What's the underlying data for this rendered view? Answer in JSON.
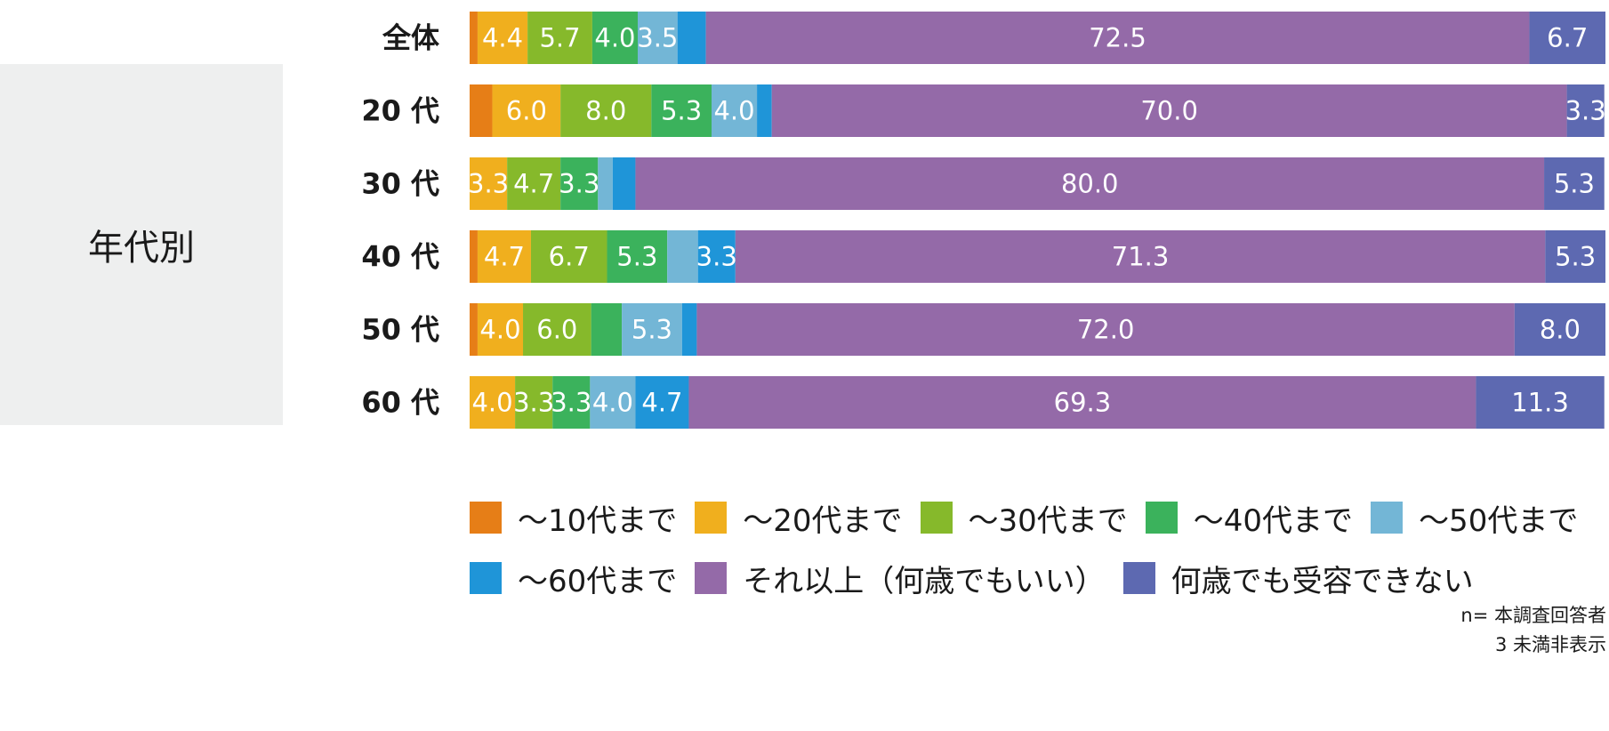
{
  "group_label": "年代別",
  "notes": [
    "n= 本調査回答者",
    "3 未満非表示"
  ],
  "chart_data": {
    "type": "bar",
    "orientation": "horizontal",
    "stacked": true,
    "normalized": true,
    "xlim": [
      0,
      100
    ],
    "categories": [
      "全体",
      "20 代",
      "30 代",
      "40 代",
      "50 代",
      "60 代"
    ],
    "series": [
      {
        "name": "～10代まで",
        "color": "#e67e17",
        "values": [
          0.7,
          2.0,
          0,
          0.7,
          0.7,
          0
        ],
        "labels": [
          "",
          "",
          "",
          "",
          "",
          ""
        ]
      },
      {
        "name": "～20代まで",
        "color": "#f0af1e",
        "values": [
          4.4,
          6.0,
          3.3,
          4.7,
          4.0,
          4.0
        ],
        "labels": [
          "4.4",
          "6.0",
          "3.3",
          "4.7",
          "4.0",
          "4.0"
        ]
      },
      {
        "name": "～30代まで",
        "color": "#86b92b",
        "values": [
          5.7,
          8.0,
          4.7,
          6.7,
          6.0,
          3.3
        ],
        "labels": [
          "5.7",
          "8.0",
          "4.7",
          "6.7",
          "6.0",
          "3.3"
        ]
      },
      {
        "name": "～40代まで",
        "color": "#3bb25c",
        "values": [
          4.0,
          5.3,
          3.3,
          5.3,
          2.7,
          3.3
        ],
        "labels": [
          "4.0",
          "5.3",
          "3.3",
          "5.3",
          "",
          "3.3"
        ]
      },
      {
        "name": "～50代まで",
        "color": "#73b6d6",
        "values": [
          3.5,
          4.0,
          1.3,
          2.7,
          5.3,
          4.0
        ],
        "labels": [
          "3.5",
          "4.0",
          "",
          "",
          "5.3",
          "4.0"
        ]
      },
      {
        "name": "～60代まで",
        "color": "#1f95d8",
        "values": [
          2.5,
          1.3,
          2.0,
          3.3,
          1.3,
          4.7
        ],
        "labels": [
          "",
          "",
          "",
          "3.3",
          "",
          "4.7"
        ]
      },
      {
        "name": "それ以上（何歳でもいい）",
        "color": "#946aa8",
        "values": [
          72.5,
          70.0,
          80.0,
          71.3,
          72.0,
          69.3
        ],
        "labels": [
          "72.5",
          "70.0",
          "80.0",
          "71.3",
          "72.0",
          "69.3"
        ]
      },
      {
        "name": "何歳でも受容できない",
        "color": "#5d69b1",
        "values": [
          6.7,
          3.3,
          5.3,
          5.3,
          8.0,
          11.3
        ],
        "labels": [
          "6.7",
          "3.3",
          "5.3",
          "5.3",
          "8.0",
          "11.3"
        ]
      }
    ]
  }
}
